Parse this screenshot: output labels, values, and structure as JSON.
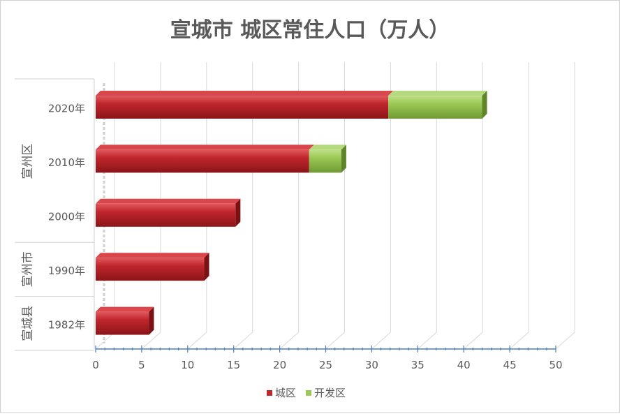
{
  "chart_data": {
    "type": "bar",
    "orientation": "horizontal",
    "stacked": true,
    "three_d": true,
    "title": "宣城市  城区常住人口（万人）",
    "categories": [
      "2020年",
      "2010年",
      "2000年",
      "1990年",
      "1982年"
    ],
    "groups": [
      {
        "label": "宣州区",
        "categories": [
          "2020年",
          "2010年",
          "2000年"
        ]
      },
      {
        "label": "宣州市",
        "categories": [
          "1990年"
        ]
      },
      {
        "label": "宣城县",
        "categories": [
          "1982年"
        ]
      }
    ],
    "series": [
      {
        "name": "城区",
        "values": [
          31.8,
          23.2,
          15.2,
          11.8,
          5.8
        ],
        "color": "#c0262c"
      },
      {
        "name": "开发区",
        "values": [
          10.2,
          3.5,
          0,
          0,
          0
        ],
        "color": "#9bc954"
      }
    ],
    "xlim": [
      0,
      50
    ],
    "xticks": [
      0,
      5,
      10,
      15,
      20,
      25,
      30,
      35,
      40,
      45,
      50
    ],
    "grid": true,
    "legend": "bottom"
  }
}
